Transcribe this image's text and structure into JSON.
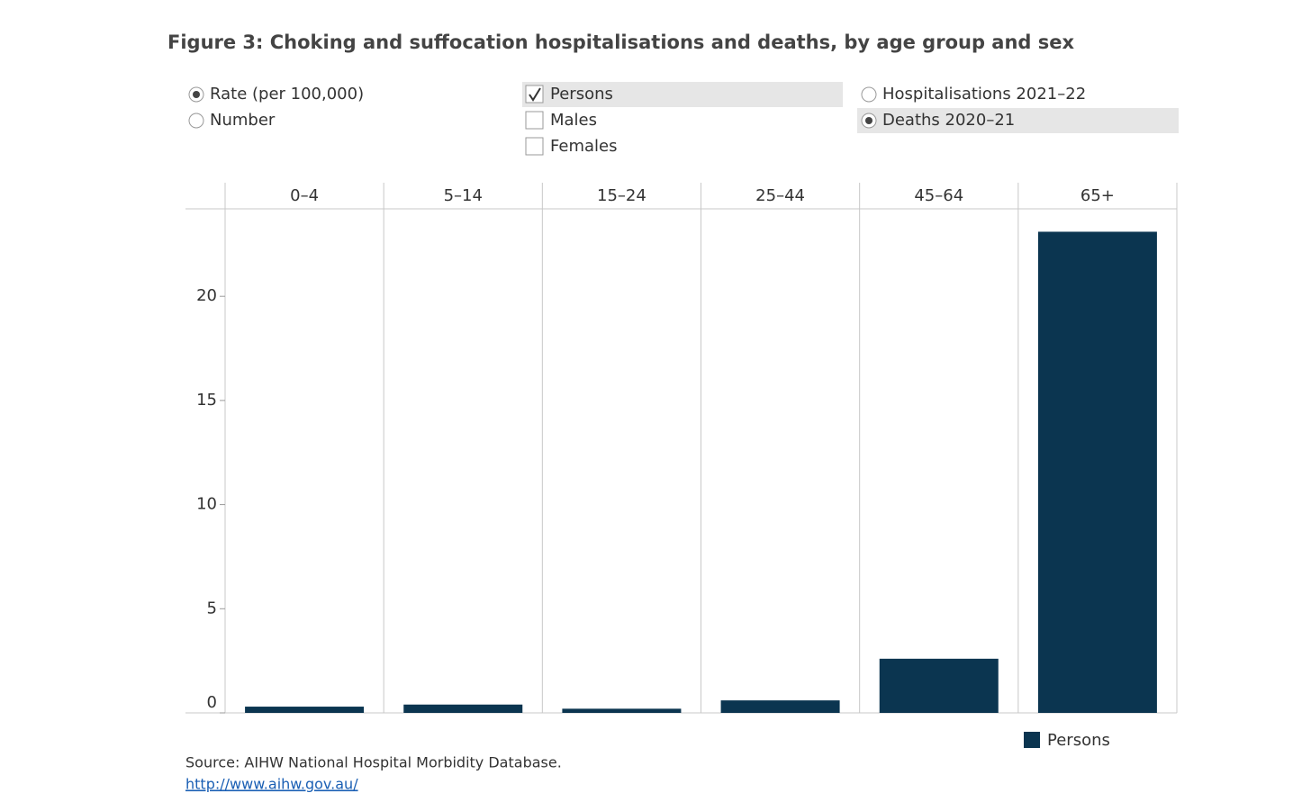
{
  "chart_data": {
    "type": "bar",
    "title": "Figure 3: Choking and suffocation hospitalisations and deaths, by age group and sex",
    "categories": [
      "0–4",
      "5–14",
      "15–24",
      "25–44",
      "45–64",
      "65+"
    ],
    "series": [
      {
        "name": "Persons",
        "color": "#0b3550",
        "values": [
          0.3,
          0.4,
          0.2,
          0.6,
          2.6,
          23.1
        ]
      }
    ],
    "ylim": [
      0,
      24.2
    ],
    "yticks": [
      0,
      5,
      10,
      15,
      20
    ],
    "grid": false
  },
  "controls": {
    "measure": {
      "options": [
        "Rate (per 100,000)",
        "Number"
      ],
      "selected": 0
    },
    "sex": {
      "options": [
        "Persons",
        "Males",
        "Females"
      ],
      "checked": [
        true,
        false,
        false
      ]
    },
    "dataset": {
      "options": [
        "Hospitalisations 2021–22",
        "Deaths 2020–21"
      ],
      "selected": 1
    }
  },
  "source": "Source: AIHW National Hospital Morbidity Database.",
  "link": "http://www.aihw.gov.au/"
}
